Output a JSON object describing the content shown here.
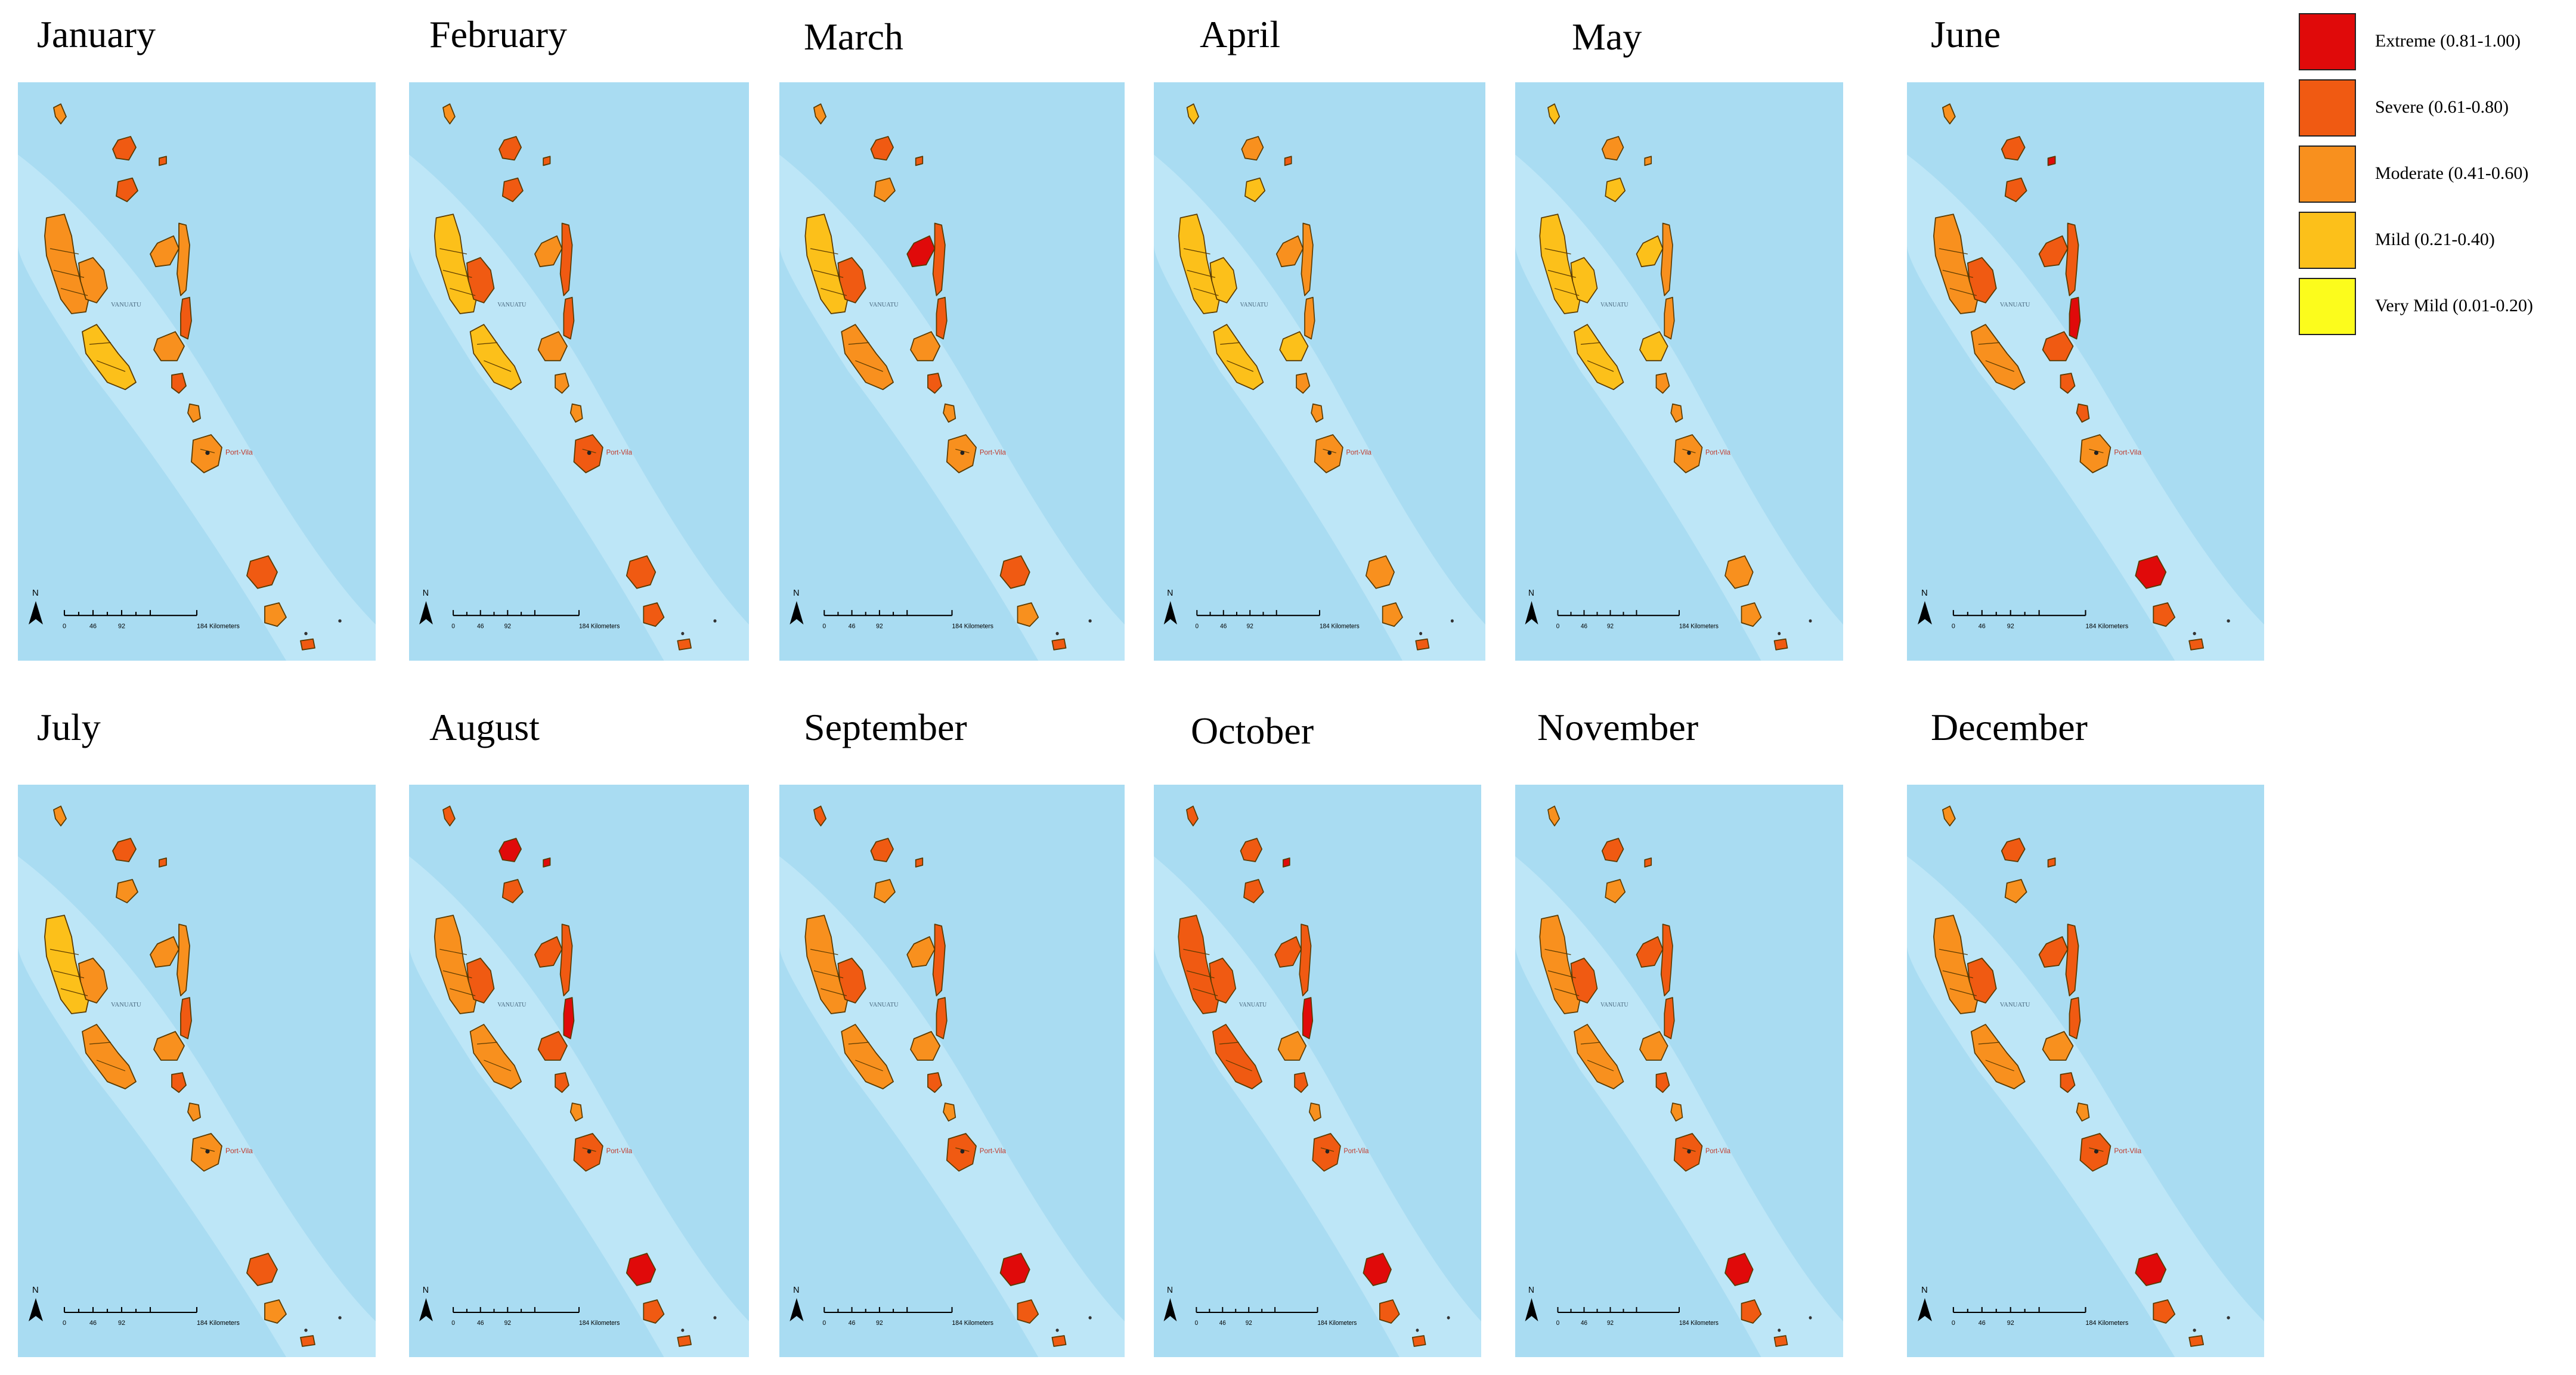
{
  "months": [
    {
      "name": "January",
      "fills": [
        2,
        1,
        1,
        1,
        2,
        2,
        2,
        2,
        1,
        3,
        2,
        1,
        2,
        2,
        1,
        2,
        1
      ]
    },
    {
      "name": "February",
      "fills": [
        2,
        1,
        1,
        1,
        3,
        1,
        2,
        1,
        1,
        3,
        2,
        2,
        2,
        1,
        1,
        1,
        1
      ]
    },
    {
      "name": "March",
      "fills": [
        2,
        1,
        2,
        1,
        3,
        1,
        0,
        1,
        1,
        2,
        2,
        1,
        2,
        2,
        1,
        2,
        1
      ]
    },
    {
      "name": "April",
      "fills": [
        3,
        2,
        3,
        1,
        3,
        3,
        2,
        2,
        2,
        3,
        3,
        2,
        2,
        2,
        2,
        2,
        1
      ]
    },
    {
      "name": "May",
      "fills": [
        3,
        2,
        3,
        2,
        3,
        3,
        3,
        2,
        2,
        3,
        3,
        2,
        2,
        2,
        2,
        2,
        1
      ]
    },
    {
      "name": "June",
      "fills": [
        2,
        1,
        1,
        0,
        2,
        1,
        1,
        1,
        0,
        2,
        1,
        1,
        1,
        2,
        0,
        1,
        1
      ]
    },
    {
      "name": "July",
      "fills": [
        2,
        1,
        2,
        1,
        3,
        2,
        2,
        2,
        1,
        2,
        2,
        1,
        2,
        2,
        1,
        2,
        1
      ]
    },
    {
      "name": "August",
      "fills": [
        1,
        0,
        1,
        0,
        2,
        1,
        1,
        1,
        0,
        2,
        1,
        1,
        2,
        1,
        0,
        1,
        1
      ]
    },
    {
      "name": "September",
      "fills": [
        1,
        1,
        2,
        1,
        2,
        1,
        2,
        1,
        1,
        2,
        2,
        1,
        2,
        1,
        0,
        1,
        1
      ]
    },
    {
      "name": "October",
      "fills": [
        1,
        1,
        1,
        0,
        1,
        1,
        1,
        1,
        0,
        1,
        2,
        1,
        2,
        1,
        0,
        1,
        1
      ]
    },
    {
      "name": "November",
      "fills": [
        2,
        1,
        2,
        1,
        2,
        1,
        1,
        1,
        1,
        2,
        2,
        1,
        2,
        1,
        0,
        1,
        1
      ]
    },
    {
      "name": "December",
      "fills": [
        2,
        1,
        2,
        1,
        2,
        1,
        1,
        1,
        1,
        2,
        2,
        1,
        2,
        1,
        0,
        1,
        1
      ]
    }
  ],
  "map_labels": {
    "country": "VANUATU",
    "capital": "Port-Vila",
    "north": "N",
    "scale_ticks": [
      "0",
      "46",
      "92"
    ],
    "scale_end": "184 Kilometers"
  },
  "legend": [
    {
      "label": "Extreme (0.81-1.00)",
      "color": "#e00a0a"
    },
    {
      "label": "Severe (0.61-0.80)",
      "color": "#f05a12"
    },
    {
      "label": "Moderate (0.41-0.60)",
      "color": "#f8901e"
    },
    {
      "label": "Mild (0.21-0.40)",
      "color": "#fcc01a"
    },
    {
      "label": "Very Mild (0.01-0.20)",
      "color": "#fcfc1c"
    }
  ],
  "colors": {
    "ocean": "#a9dcf2",
    "ocean_light": "#cdeefb",
    "outline": "#5a3a00"
  }
}
